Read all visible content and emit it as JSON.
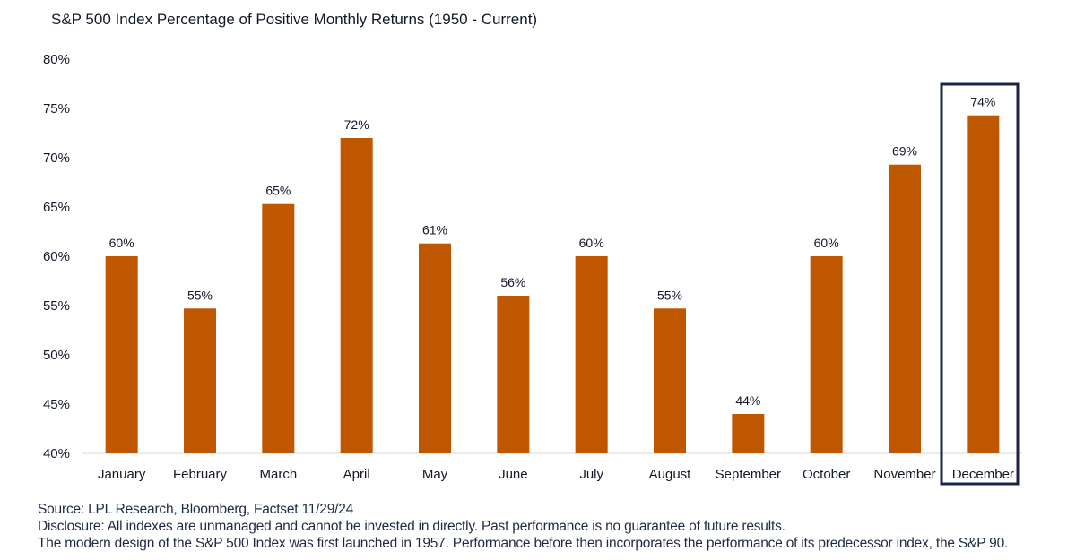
{
  "chart_data": {
    "type": "bar",
    "title": "S&P 500 Index Percentage of Positive Monthly Returns (1950 - Current)",
    "xlabel": "",
    "ylabel": "",
    "ylim": [
      40,
      80
    ],
    "yticks": [
      40,
      45,
      50,
      55,
      60,
      65,
      70,
      75,
      80
    ],
    "ytick_labels": [
      "40%",
      "45%",
      "50%",
      "55%",
      "60%",
      "65%",
      "70%",
      "75%",
      "80%"
    ],
    "categories": [
      "January",
      "February",
      "March",
      "April",
      "May",
      "June",
      "July",
      "August",
      "September",
      "October",
      "November",
      "December"
    ],
    "values": [
      60,
      54.7,
      65.3,
      72,
      61.3,
      56,
      60,
      54.7,
      44,
      60,
      69.3,
      74.3
    ],
    "data_labels": [
      "60%",
      "55%",
      "65%",
      "72%",
      "61%",
      "56%",
      "60%",
      "55%",
      "44%",
      "60%",
      "69%",
      "74%"
    ],
    "highlight_category": "December",
    "grid": false,
    "legend": "none",
    "colors": {
      "bar": "#BF5600",
      "highlight_box": "#1B2541",
      "text": "#111827",
      "axis": "#D9D9D9"
    }
  },
  "footer": {
    "source": "Source: LPL Research, Bloomberg, Factset 11/29/24",
    "disclosure": "Disclosure: All indexes are unmanaged and cannot be invested in directly. Past performance is no guarantee of future results.",
    "note": "The modern design of the S&P 500 Index was first launched in 1957. Performance before then incorporates the performance of its predecessor index, the S&P 90."
  }
}
